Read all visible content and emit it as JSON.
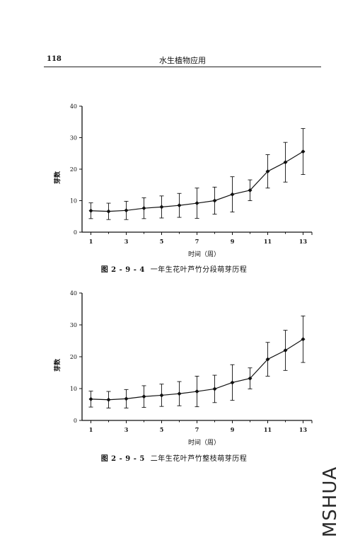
{
  "header": {
    "page_number": "118",
    "running_title": "水生植物应用"
  },
  "figures": [
    {
      "caption_number": "图 2 - 9 - 4",
      "caption_text": "一年生花叶芦竹分段萌芽历程"
    },
    {
      "caption_number": "图 2 - 9 - 5",
      "caption_text": "二年生花叶芦竹整枝萌芽历程"
    }
  ],
  "watermark": "MSHUA",
  "chart_data": [
    {
      "type": "line",
      "xlabel": "时间（周）",
      "ylabel": "芽数",
      "xlim": [
        0.5,
        13.5
      ],
      "ylim": [
        0,
        40
      ],
      "x_ticks": [
        1,
        3,
        5,
        7,
        9,
        11,
        13
      ],
      "y_ticks": [
        0,
        10,
        20,
        30,
        40
      ],
      "grid": false,
      "error_bars": true,
      "series": [
        {
          "x": [
            1,
            2,
            3,
            4,
            5,
            6,
            7,
            8,
            9,
            10,
            11,
            12,
            13
          ],
          "values": [
            6.8,
            6.6,
            6.9,
            7.6,
            8.0,
            8.5,
            9.2,
            10.0,
            12.0,
            13.3,
            19.3,
            22.2,
            25.6
          ],
          "error": [
            2.5,
            2.6,
            2.9,
            3.3,
            3.5,
            3.8,
            4.8,
            4.3,
            5.6,
            3.3,
            5.3,
            6.3,
            7.3
          ]
        }
      ]
    },
    {
      "type": "line",
      "xlabel": "时间（周）",
      "ylabel": "芽数",
      "xlim": [
        0.5,
        13.5
      ],
      "ylim": [
        0,
        40
      ],
      "x_ticks": [
        1,
        3,
        5,
        7,
        9,
        11,
        13
      ],
      "y_ticks": [
        0,
        10,
        20,
        30,
        40
      ],
      "grid": false,
      "error_bars": true,
      "series": [
        {
          "x": [
            1,
            2,
            3,
            4,
            5,
            6,
            7,
            8,
            9,
            10,
            11,
            12,
            13
          ],
          "values": [
            6.7,
            6.5,
            6.8,
            7.5,
            7.9,
            8.4,
            9.1,
            9.9,
            11.9,
            13.2,
            19.2,
            22.0,
            25.5
          ],
          "error": [
            2.5,
            2.6,
            2.9,
            3.4,
            3.5,
            3.8,
            4.8,
            4.3,
            5.6,
            3.3,
            5.3,
            6.3,
            7.3
          ]
        }
      ]
    }
  ]
}
